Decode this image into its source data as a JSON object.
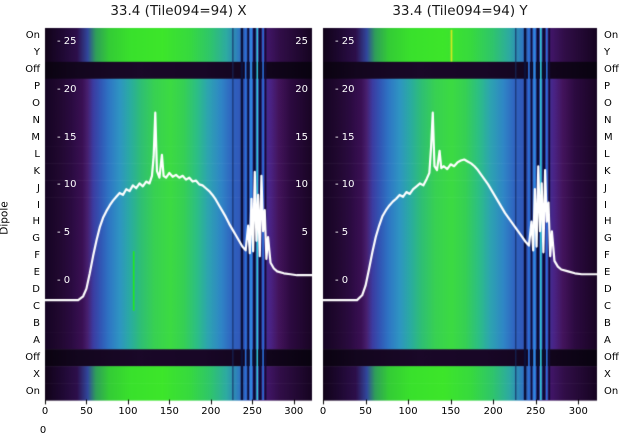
{
  "chart_data": {
    "type": "heatmap",
    "titles": [
      "33.4 (Tile094=94) X",
      "33.4 (Tile094=94) Y"
    ],
    "dipole_axis_label": "Dipole",
    "line_color": "#ffffff",
    "x_axis": {
      "ticks": [
        0,
        50,
        100,
        150,
        200,
        250,
        300
      ],
      "range": [
        0,
        322
      ],
      "corner_label": "0"
    },
    "value_axis": {
      "tick_values": [
        25,
        20,
        15,
        10,
        5,
        0
      ],
      "ticks_left": [
        "- 25",
        "- 20",
        "- 15",
        "- 10",
        "- 5",
        "- 0"
      ],
      "ticks_right": [
        "25",
        "20",
        "15",
        "10",
        "5"
      ],
      "range": [
        -2.5,
        26
      ]
    },
    "rows": [
      {
        "label": "On",
        "type": "on"
      },
      {
        "label": "Y",
        "type": "on"
      },
      {
        "label": "Off",
        "type": "off"
      },
      {
        "label": "P",
        "type": "normal"
      },
      {
        "label": "O",
        "type": "normal"
      },
      {
        "label": "N",
        "type": "normal"
      },
      {
        "label": "M",
        "type": "normal"
      },
      {
        "label": "L",
        "type": "normal"
      },
      {
        "label": "K",
        "type": "normal"
      },
      {
        "label": "J",
        "type": "normal"
      },
      {
        "label": "I",
        "type": "normal"
      },
      {
        "label": "H",
        "type": "normal"
      },
      {
        "label": "G",
        "type": "normal"
      },
      {
        "label": "F",
        "type": "normal"
      },
      {
        "label": "E",
        "type": "normal"
      },
      {
        "label": "D",
        "type": "normal"
      },
      {
        "label": "C",
        "type": "normal"
      },
      {
        "label": "B",
        "type": "normal"
      },
      {
        "label": "A",
        "type": "normal"
      },
      {
        "label": "Off",
        "type": "off"
      },
      {
        "label": "X",
        "type": "on"
      },
      {
        "label": "On",
        "type": "on"
      }
    ],
    "palettes": {
      "normal": [
        [
          0.0,
          "#150423"
        ],
        [
          0.05,
          "#20082f"
        ],
        [
          0.1,
          "#2b0b41"
        ],
        [
          0.14,
          "#3a1054"
        ],
        [
          0.16,
          "#472070"
        ],
        [
          0.18,
          "#3c3ba0"
        ],
        [
          0.21,
          "#3158b6"
        ],
        [
          0.24,
          "#2e76c4"
        ],
        [
          0.28,
          "#2e95c2"
        ],
        [
          0.32,
          "#2aaca0"
        ],
        [
          0.36,
          "#2fbf74"
        ],
        [
          0.41,
          "#38d152"
        ],
        [
          0.47,
          "#3cdb42"
        ],
        [
          0.52,
          "#36d054"
        ],
        [
          0.57,
          "#2cbe86"
        ],
        [
          0.61,
          "#2da4b0"
        ],
        [
          0.66,
          "#2f85c6"
        ],
        [
          0.7,
          "#2f63c0"
        ],
        [
          0.75,
          "#3152b4"
        ],
        [
          0.78,
          "#3544a6"
        ],
        [
          0.81,
          "#3c35a0"
        ],
        [
          0.845,
          "#4a2384"
        ],
        [
          0.875,
          "#43145c"
        ],
        [
          0.92,
          "#2c0a40"
        ],
        [
          1.0,
          "#190524"
        ]
      ],
      "on": [
        [
          0.0,
          "#110319"
        ],
        [
          0.06,
          "#1e0831"
        ],
        [
          0.12,
          "#2d0f4b"
        ],
        [
          0.16,
          "#31479c"
        ],
        [
          0.19,
          "#2f9e5a"
        ],
        [
          0.24,
          "#34cc36"
        ],
        [
          0.32,
          "#39e12c"
        ],
        [
          0.44,
          "#3de62a"
        ],
        [
          0.54,
          "#37da3e"
        ],
        [
          0.62,
          "#2fc56c"
        ],
        [
          0.68,
          "#2daaa2"
        ],
        [
          0.73,
          "#2f76c2"
        ],
        [
          0.78,
          "#3a3ca4"
        ],
        [
          0.82,
          "#451870"
        ],
        [
          0.88,
          "#310e48"
        ],
        [
          1.0,
          "#160421"
        ]
      ],
      "off": [
        [
          0.0,
          "#0a0310"
        ],
        [
          0.12,
          "#13061e"
        ],
        [
          0.35,
          "#1a0828"
        ],
        [
          0.6,
          "#180726"
        ],
        [
          0.85,
          "#11051b"
        ],
        [
          1.0,
          "#090310"
        ]
      ]
    },
    "stripes": [
      {
        "x": 226,
        "w": 1,
        "color": "#142a60"
      },
      {
        "x": 236,
        "w": 3,
        "color": "#0b1038"
      },
      {
        "x": 241,
        "w": 2,
        "color": "#2a6fd8"
      },
      {
        "x": 244,
        "w": 2,
        "color": "#0b1038"
      },
      {
        "x": 247,
        "w": 3,
        "color": "#2f86e0"
      },
      {
        "x": 251,
        "w": 3,
        "color": "#0a0c30"
      },
      {
        "x": 255,
        "w": 2,
        "color": "#30c8d8"
      },
      {
        "x": 258,
        "w": 3,
        "color": "#0a0c30"
      },
      {
        "x": 262,
        "w": 2,
        "color": "#2a6fd8"
      },
      {
        "x": 265,
        "w": 2,
        "color": "#140a34"
      }
    ],
    "accents": {
      "x_panel": [
        {
          "x": 106,
          "w": 2,
          "color": "#22e822",
          "y0": 0.6,
          "y1": 0.76
        }
      ],
      "y_panel": [
        {
          "x": 150,
          "w": 2,
          "color": "#d4e822",
          "y0": 0.005,
          "y1": 0.09
        }
      ]
    },
    "series": {
      "x_panel": [
        [
          0,
          -2
        ],
        [
          20,
          -2
        ],
        [
          40,
          -2
        ],
        [
          46,
          -1.6
        ],
        [
          50,
          -0.8
        ],
        [
          54,
          0.8
        ],
        [
          58,
          2.6
        ],
        [
          62,
          4.2
        ],
        [
          66,
          5.6
        ],
        [
          70,
          6.6
        ],
        [
          74,
          7.3
        ],
        [
          78,
          7.9
        ],
        [
          82,
          8.4
        ],
        [
          86,
          8.8
        ],
        [
          90,
          9.2
        ],
        [
          94,
          9.0
        ],
        [
          98,
          9.6
        ],
        [
          102,
          9.4
        ],
        [
          106,
          10.0
        ],
        [
          110,
          9.7
        ],
        [
          114,
          10.2
        ],
        [
          118,
          9.9
        ],
        [
          122,
          10.4
        ],
        [
          126,
          10.2
        ],
        [
          129,
          11.0
        ],
        [
          131,
          13.0
        ],
        [
          133,
          17.6
        ],
        [
          135,
          11.5
        ],
        [
          138,
          10.8
        ],
        [
          141,
          13.2
        ],
        [
          143,
          11.0
        ],
        [
          146,
          10.8
        ],
        [
          150,
          11.3
        ],
        [
          154,
          10.9
        ],
        [
          158,
          11.1
        ],
        [
          162,
          10.8
        ],
        [
          166,
          11.0
        ],
        [
          170,
          10.6
        ],
        [
          174,
          10.8
        ],
        [
          178,
          10.4
        ],
        [
          182,
          10.5
        ],
        [
          186,
          10.1
        ],
        [
          190,
          10.0
        ],
        [
          194,
          9.7
        ],
        [
          198,
          9.4
        ],
        [
          202,
          9.0
        ],
        [
          206,
          8.5
        ],
        [
          210,
          7.9
        ],
        [
          214,
          7.3
        ],
        [
          218,
          6.7
        ],
        [
          222,
          6.0
        ],
        [
          226,
          5.4
        ],
        [
          230,
          4.8
        ],
        [
          234,
          4.2
        ],
        [
          238,
          3.6
        ],
        [
          242,
          3.2
        ],
        [
          245,
          5.8
        ],
        [
          247,
          2.9
        ],
        [
          249,
          8.6
        ],
        [
          251,
          3.1
        ],
        [
          253,
          11.4
        ],
        [
          255,
          4.2
        ],
        [
          257,
          9.0
        ],
        [
          259,
          2.6
        ],
        [
          261,
          11.0
        ],
        [
          263,
          5.2
        ],
        [
          265,
          7.4
        ],
        [
          267,
          2.3
        ],
        [
          269,
          4.6
        ],
        [
          272,
          1.9
        ],
        [
          276,
          1.3
        ],
        [
          280,
          1.0
        ],
        [
          288,
          0.8
        ],
        [
          296,
          0.7
        ],
        [
          304,
          0.6
        ],
        [
          312,
          0.6
        ],
        [
          322,
          0.6
        ]
      ],
      "y_panel": [
        [
          0,
          -2
        ],
        [
          20,
          -2
        ],
        [
          40,
          -2
        ],
        [
          46,
          -1.5
        ],
        [
          50,
          -0.5
        ],
        [
          54,
          1.2
        ],
        [
          58,
          3.0
        ],
        [
          62,
          4.6
        ],
        [
          66,
          5.8
        ],
        [
          70,
          6.8
        ],
        [
          74,
          7.4
        ],
        [
          78,
          7.9
        ],
        [
          82,
          8.3
        ],
        [
          86,
          8.6
        ],
        [
          90,
          9.0
        ],
        [
          94,
          8.8
        ],
        [
          98,
          9.3
        ],
        [
          102,
          9.1
        ],
        [
          106,
          9.6
        ],
        [
          110,
          9.9
        ],
        [
          114,
          10.2
        ],
        [
          118,
          10.0
        ],
        [
          122,
          10.7
        ],
        [
          125,
          11.3
        ],
        [
          127,
          14.0
        ],
        [
          129,
          17.6
        ],
        [
          131,
          12.0
        ],
        [
          134,
          11.6
        ],
        [
          137,
          13.6
        ],
        [
          139,
          11.8
        ],
        [
          142,
          12.0
        ],
        [
          146,
          11.7
        ],
        [
          150,
          12.2
        ],
        [
          154,
          12.0
        ],
        [
          158,
          12.4
        ],
        [
          162,
          12.6
        ],
        [
          166,
          12.7
        ],
        [
          170,
          12.5
        ],
        [
          174,
          12.3
        ],
        [
          178,
          12.0
        ],
        [
          182,
          11.6
        ],
        [
          186,
          11.1
        ],
        [
          190,
          10.6
        ],
        [
          194,
          10.1
        ],
        [
          198,
          9.5
        ],
        [
          202,
          8.9
        ],
        [
          206,
          8.3
        ],
        [
          210,
          7.7
        ],
        [
          214,
          7.1
        ],
        [
          218,
          6.6
        ],
        [
          222,
          6.1
        ],
        [
          226,
          5.6
        ],
        [
          230,
          5.1
        ],
        [
          234,
          4.6
        ],
        [
          238,
          4.1
        ],
        [
          242,
          3.7
        ],
        [
          245,
          6.2
        ],
        [
          247,
          3.2
        ],
        [
          249,
          9.6
        ],
        [
          251,
          3.6
        ],
        [
          253,
          12.0
        ],
        [
          255,
          5.2
        ],
        [
          257,
          10.2
        ],
        [
          259,
          3.0
        ],
        [
          261,
          11.6
        ],
        [
          263,
          6.2
        ],
        [
          265,
          8.2
        ],
        [
          267,
          2.6
        ],
        [
          269,
          5.2
        ],
        [
          272,
          2.1
        ],
        [
          276,
          1.5
        ],
        [
          280,
          1.2
        ],
        [
          288,
          1.0
        ],
        [
          296,
          0.8
        ],
        [
          304,
          0.7
        ],
        [
          312,
          0.7
        ],
        [
          322,
          0.7
        ]
      ]
    }
  }
}
